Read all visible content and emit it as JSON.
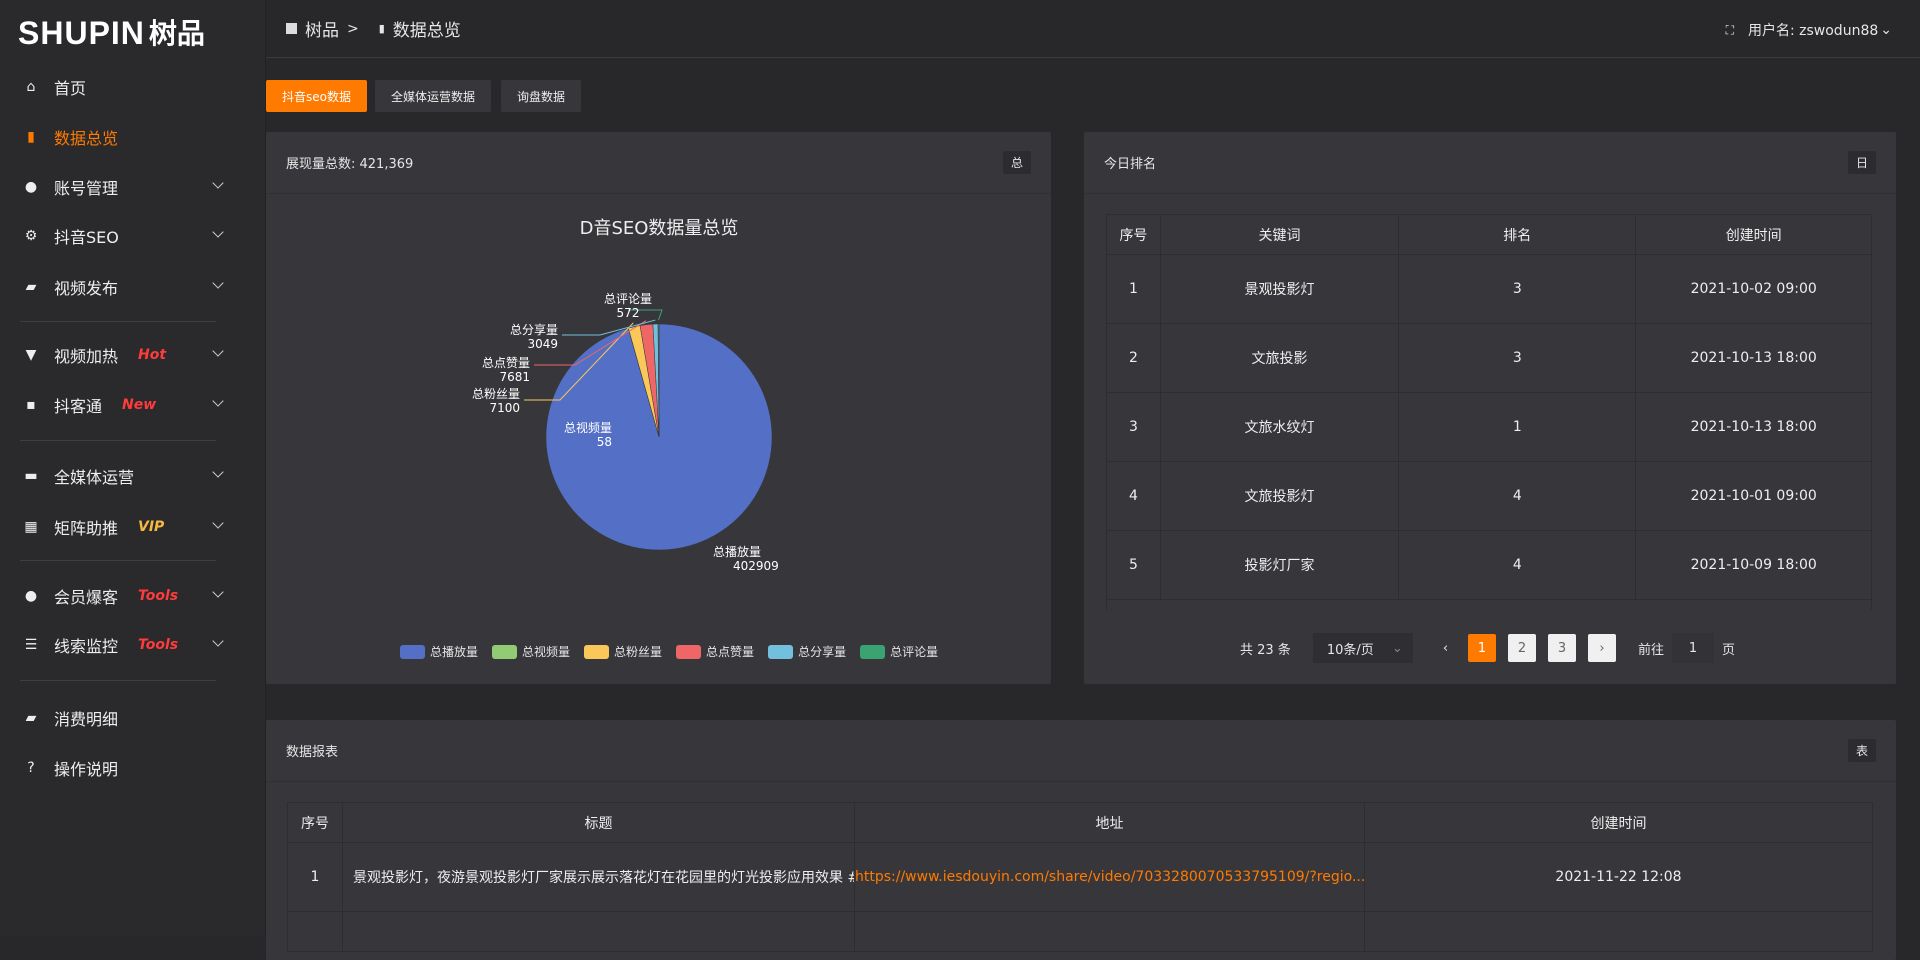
{
  "logo": {
    "en": "SHUPIN",
    "cn": "树品"
  },
  "sidebar": {
    "items": [
      {
        "label": "首页",
        "icon": "home-icon",
        "glyph": "⌂"
      },
      {
        "label": "数据总览",
        "icon": "bar-chart-icon",
        "glyph": "▮",
        "active": true
      },
      {
        "label": "账号管理",
        "icon": "user-icon",
        "glyph": "●",
        "chevron": true
      },
      {
        "label": "抖音SEO",
        "icon": "gear-icon",
        "glyph": "⚙",
        "chevron": true
      },
      {
        "label": "视频发布",
        "icon": "camera-icon",
        "glyph": "▰",
        "chevron": true
      },
      {
        "label": "视频加热",
        "icon": "flag-icon",
        "glyph": "▼",
        "chevron": true,
        "badge": "Hot",
        "badge_color": "#ff3b3b"
      },
      {
        "label": "抖客通",
        "icon": "chat-icon",
        "glyph": "▪",
        "chevron": true,
        "badge": "New",
        "badge_color": "#ff3b3b"
      },
      {
        "label": "全媒体运营",
        "icon": "monitor-icon",
        "glyph": "▬",
        "chevron": true
      },
      {
        "label": "矩阵助推",
        "icon": "grid-icon",
        "glyph": "▦",
        "chevron": true,
        "badge": "VIP",
        "badge_color": "#f5b841"
      },
      {
        "label": "会员爆客",
        "icon": "user-icon",
        "glyph": "●",
        "chevron": true,
        "badge": "Tools",
        "badge_color": "#ff3b3b"
      },
      {
        "label": "线索监控",
        "icon": "sliders-icon",
        "glyph": "☰",
        "chevron": true,
        "badge": "Tools",
        "badge_color": "#ff3b3b"
      },
      {
        "label": "消费明细",
        "icon": "wallet-icon",
        "glyph": "▰"
      },
      {
        "label": "操作说明",
        "icon": "help-icon",
        "glyph": "?"
      }
    ]
  },
  "header": {
    "crumb_root": "树品",
    "crumb_sep": ">",
    "crumb_current": "数据总览",
    "user_label": "用户名: zswodun88"
  },
  "tabs": [
    "抖音seo数据",
    "全媒体运营数据",
    "询盘数据"
  ],
  "pie_card": {
    "title": "展现量总数: 421,369",
    "tag": "总"
  },
  "chart_data": {
    "type": "pie",
    "title": "D音SEO数据量总览",
    "categories": [
      "总播放量",
      "总视频量",
      "总粉丝量",
      "总点赞量",
      "总分享量",
      "总评论量"
    ],
    "values": [
      402909,
      58,
      7100,
      7681,
      3049,
      572
    ],
    "colors": [
      "#5470c6",
      "#91cc75",
      "#fac858",
      "#ee6666",
      "#73c0de",
      "#3ba272"
    ],
    "legend": "bottom"
  },
  "rank_card": {
    "title": "今日排名",
    "tag": "日",
    "columns": [
      "序号",
      "关键词",
      "排名",
      "创建时间"
    ],
    "rows": [
      [
        "1",
        "景观投影灯",
        "3",
        "2021-10-02 09:00"
      ],
      [
        "2",
        "文旅投影",
        "3",
        "2021-10-13 18:00"
      ],
      [
        "3",
        "文旅水纹灯",
        "1",
        "2021-10-13 18:00"
      ],
      [
        "4",
        "文旅投影灯",
        "4",
        "2021-10-01 09:00"
      ],
      [
        "5",
        "投影灯厂家",
        "4",
        "2021-10-09 18:00"
      ]
    ],
    "pager": {
      "total": "共 23 条",
      "size": "10条/页",
      "pages": [
        "1",
        "2",
        "3"
      ],
      "current": "1",
      "goto_label": "前往",
      "goto_value": "1",
      "page_unit": "页"
    }
  },
  "report_card": {
    "title": "数据报表",
    "tag": "表",
    "columns": [
      "序号",
      "标题",
      "地址",
      "创建时间"
    ],
    "rows": [
      [
        "1",
        "景观投影灯，夜游景观投影灯厂家展示展示落花灯在花园里的灯光投影应用效果 #",
        "https://www.iesdouyin.com/share/video/7033280070533795109/?regio...",
        "2021-11-22 12:08"
      ]
    ]
  }
}
